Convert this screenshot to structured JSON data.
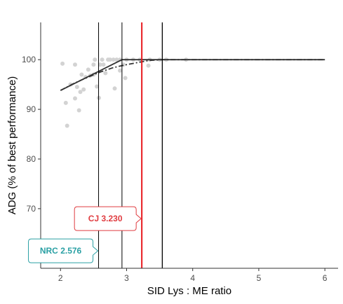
{
  "chart_data": {
    "type": "scatter",
    "title": "",
    "xlabel": "SID Lys : ME ratio",
    "ylabel": "ADG (% of best performance)",
    "xlim": [
      1.7,
      6.2
    ],
    "ylim": [
      58,
      107.5
    ],
    "xticks": [
      2,
      3,
      4,
      5,
      6
    ],
    "yticks": [
      70,
      80,
      90,
      100
    ],
    "xtick_labels": [
      "2",
      "3",
      "4",
      "5",
      "6"
    ],
    "ytick_labels": [
      "70",
      "80",
      "90",
      "100"
    ],
    "grid": false,
    "colors": {
      "points": "#d3d3d3",
      "fit_lines": "#333333",
      "estimate_line": "#e8191f",
      "vertical_lines": "#000000",
      "cj_callout": "#e03c40",
      "nrc_callout": "#2aa0a4"
    },
    "points": [
      {
        "x": 2.03,
        "y": 99.2
      },
      {
        "x": 2.08,
        "y": 91.3
      },
      {
        "x": 2.1,
        "y": 86.7
      },
      {
        "x": 2.15,
        "y": 95.0
      },
      {
        "x": 2.22,
        "y": 99.0
      },
      {
        "x": 2.22,
        "y": 92.2
      },
      {
        "x": 2.25,
        "y": 94.5
      },
      {
        "x": 2.28,
        "y": 89.8
      },
      {
        "x": 2.3,
        "y": 93.5
      },
      {
        "x": 2.32,
        "y": 97.0
      },
      {
        "x": 2.35,
        "y": 94.0
      },
      {
        "x": 2.38,
        "y": 96.5
      },
      {
        "x": 2.42,
        "y": 98.0
      },
      {
        "x": 2.45,
        "y": 96.8
      },
      {
        "x": 2.5,
        "y": 97.0
      },
      {
        "x": 2.5,
        "y": 99.0
      },
      {
        "x": 2.52,
        "y": 100.0
      },
      {
        "x": 2.55,
        "y": 94.6
      },
      {
        "x": 2.58,
        "y": 92.3
      },
      {
        "x": 2.6,
        "y": 99.0
      },
      {
        "x": 2.63,
        "y": 100.0
      },
      {
        "x": 2.65,
        "y": 99.0
      },
      {
        "x": 2.68,
        "y": 97.3
      },
      {
        "x": 2.72,
        "y": 100.0
      },
      {
        "x": 2.75,
        "y": 100.0
      },
      {
        "x": 2.8,
        "y": 100.0
      },
      {
        "x": 2.82,
        "y": 94.2
      },
      {
        "x": 2.85,
        "y": 100.0
      },
      {
        "x": 2.9,
        "y": 100.0
      },
      {
        "x": 2.9,
        "y": 97.8
      },
      {
        "x": 2.95,
        "y": 99.0
      },
      {
        "x": 2.98,
        "y": 96.3
      },
      {
        "x": 3.0,
        "y": 100.0
      },
      {
        "x": 3.1,
        "y": 100.0
      },
      {
        "x": 3.2,
        "y": 100.0
      },
      {
        "x": 3.33,
        "y": 98.8
      },
      {
        "x": 3.35,
        "y": 100.0
      },
      {
        "x": 3.5,
        "y": 100.0
      },
      {
        "x": 3.6,
        "y": 100.0
      },
      {
        "x": 3.9,
        "y": 100.0
      }
    ],
    "series": [
      {
        "style": "solid",
        "x": [
          2.0,
          2.93,
          6.0
        ],
        "y": [
          93.8,
          100.0,
          100.0
        ]
      },
      {
        "style": "dashdot",
        "x": [
          2.0,
          2.2,
          2.4,
          2.6,
          2.8,
          3.0,
          3.2,
          3.35,
          3.55,
          6.0
        ],
        "y": [
          93.8,
          95.2,
          96.4,
          97.5,
          98.4,
          99.0,
          99.5,
          99.85,
          100.0,
          100.0
        ]
      }
    ],
    "vertical_lines": [
      {
        "x": 2.576,
        "color": "#000000",
        "width": 1
      },
      {
        "x": 2.93,
        "color": "#000000",
        "width": 1
      },
      {
        "x": 3.23,
        "color": "#e8191f",
        "width": 2
      },
      {
        "x": 3.54,
        "color": "#000000",
        "width": 1.3
      }
    ],
    "annotations": [
      {
        "label": "CJ",
        "value": "3.230",
        "x": 3.23,
        "y": 68,
        "side": "left",
        "color": "#e03c40"
      },
      {
        "label": "NRC",
        "value": "2.576",
        "x": 2.576,
        "y": 61.5,
        "side": "left",
        "color": "#2aa0a4"
      }
    ]
  }
}
